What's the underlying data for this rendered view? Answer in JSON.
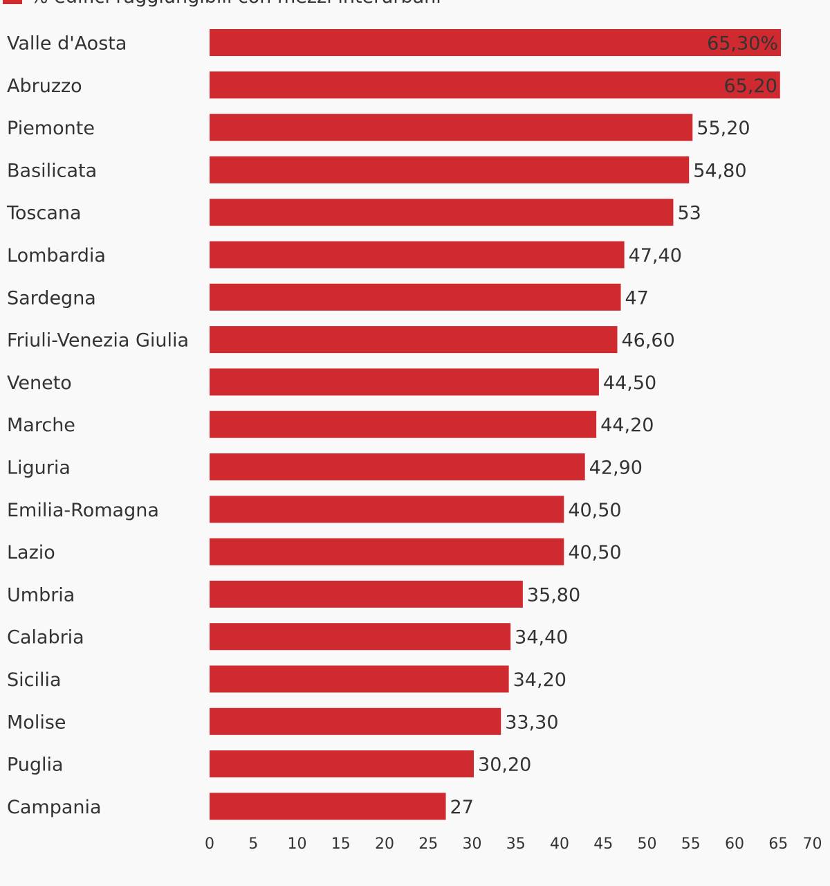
{
  "chart_data": {
    "type": "bar",
    "orientation": "horizontal",
    "title": "",
    "xlabel": "",
    "ylabel": "",
    "legend": {
      "position": "top-left",
      "entries": [
        {
          "label": "% edifici raggiungibili con mezzi interurbani",
          "color": "#cf2a30"
        }
      ]
    },
    "grid": false,
    "xlim": [
      0,
      70
    ],
    "x_ticks": [
      "0",
      "5",
      "10",
      "15",
      "20",
      "25",
      "30",
      "35",
      "40",
      "45",
      "50",
      "55",
      "60",
      "65",
      "70"
    ],
    "series": [
      {
        "name": "% edifici raggiungibili con mezzi interurbani",
        "color": "#cf2a30",
        "categories": [
          "Valle d'Aosta",
          "Abruzzo",
          "Piemonte",
          "Basilicata",
          "Toscana",
          "Lombardia",
          "Sardegna",
          "Friuli-Venezia Giulia",
          "Veneto",
          "Marche",
          "Liguria",
          "Emilia-Romagna",
          "Lazio",
          "Umbria",
          "Calabria",
          "Sicilia",
          "Molise",
          "Puglia",
          "Campania"
        ],
        "values": [
          65.3,
          65.2,
          55.2,
          54.8,
          53,
          47.4,
          47,
          46.6,
          44.5,
          44.2,
          42.9,
          40.5,
          40.5,
          35.8,
          34.4,
          34.2,
          33.3,
          30.2,
          27
        ],
        "value_labels": [
          "65,30%",
          "65,20",
          "55,20",
          "54,80",
          "53",
          "47,40",
          "47",
          "46,60",
          "44,50",
          "44,20",
          "42,90",
          "40,50",
          "40,50",
          "35,80",
          "34,40",
          "34,20",
          "33,30",
          "30,20",
          "27"
        ]
      }
    ]
  }
}
